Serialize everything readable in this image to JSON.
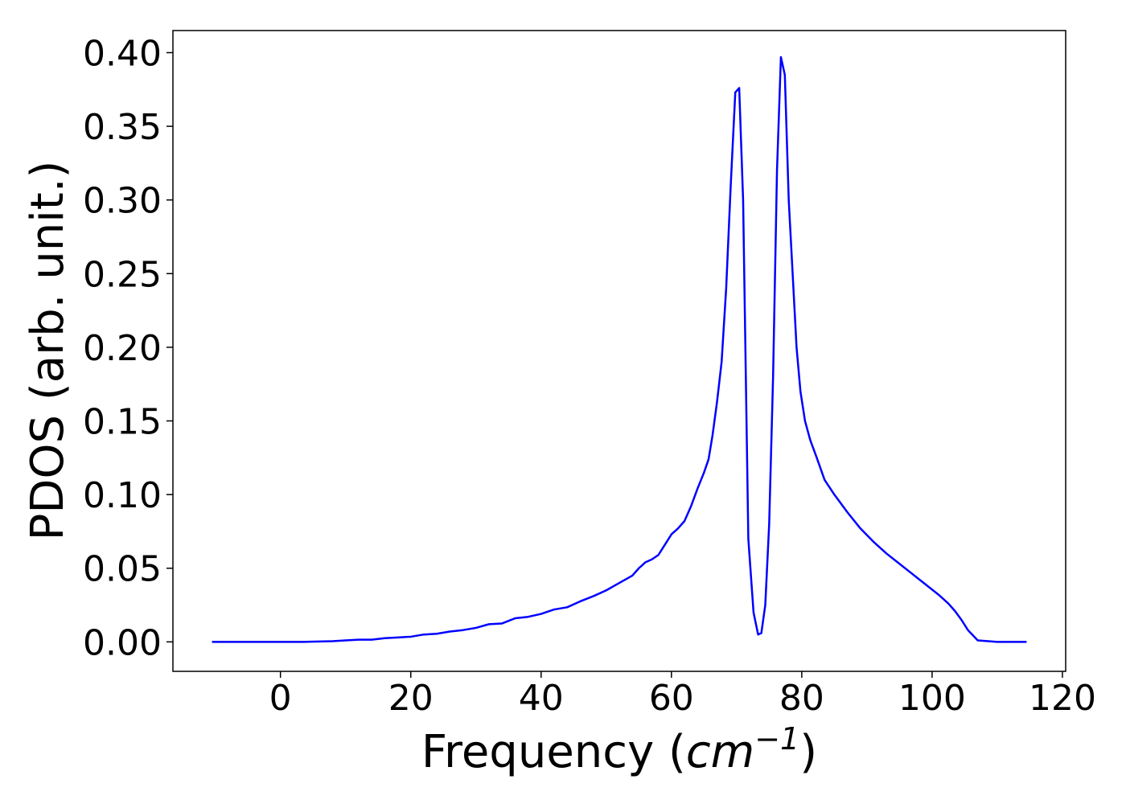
{
  "chart_data": {
    "type": "line",
    "title": "",
    "xlabel": "Frequency",
    "xlabel_unit": "cm",
    "xlabel_unit_exponent": "−1",
    "ylabel": "PDOS (arb. unit.)",
    "xlim": [
      -16.5,
      120.5
    ],
    "ylim": [
      -0.02,
      0.415
    ],
    "xticks": [
      0,
      20,
      40,
      60,
      80,
      100,
      120
    ],
    "xtick_labels": [
      "0",
      "20",
      "40",
      "60",
      "80",
      "100",
      "120"
    ],
    "yticks": [
      0.0,
      0.05,
      0.1,
      0.15,
      0.2,
      0.25,
      0.3,
      0.35,
      0.4
    ],
    "ytick_labels": [
      "0.00",
      "0.05",
      "0.10",
      "0.15",
      "0.20",
      "0.25",
      "0.30",
      "0.35",
      "0.40"
    ],
    "grid": false,
    "legend": "none",
    "series": [
      {
        "color": "#0000ff",
        "x": [
          -10.5,
          -5,
          0,
          3.5,
          8,
          10,
          12,
          14,
          16,
          18,
          20,
          22,
          24,
          26,
          28,
          30,
          32,
          34,
          36,
          38,
          40,
          42,
          44,
          46,
          48,
          50,
          52,
          54,
          55,
          56,
          57,
          58,
          59,
          60,
          61,
          62,
          63,
          64,
          65,
          65.7,
          66.3,
          67,
          67.7,
          68.4,
          69.1,
          69.8,
          70.4,
          71,
          71.8,
          72.6,
          73.3,
          73.8,
          74.4,
          75,
          75.6,
          76.2,
          76.8,
          77.4,
          78,
          78.6,
          79.2,
          79.8,
          80.5,
          81.3,
          82.3,
          83.5,
          85,
          87,
          89,
          91,
          93,
          95,
          97,
          99,
          101,
          102.5,
          103.5,
          104.5,
          105.5,
          107,
          110,
          114.5
        ],
        "y": [
          0.0,
          0.0,
          0.0,
          0.0,
          0.0005,
          0.001,
          0.0015,
          0.0015,
          0.0025,
          0.003,
          0.0035,
          0.005,
          0.0055,
          0.007,
          0.008,
          0.0095,
          0.012,
          0.0125,
          0.016,
          0.017,
          0.019,
          0.022,
          0.0235,
          0.0275,
          0.031,
          0.035,
          0.04,
          0.045,
          0.05,
          0.054,
          0.056,
          0.059,
          0.066,
          0.073,
          0.077,
          0.082,
          0.092,
          0.104,
          0.115,
          0.124,
          0.14,
          0.163,
          0.19,
          0.24,
          0.31,
          0.373,
          0.376,
          0.3,
          0.07,
          0.02,
          0.005,
          0.006,
          0.025,
          0.08,
          0.18,
          0.32,
          0.397,
          0.385,
          0.3,
          0.25,
          0.2,
          0.17,
          0.15,
          0.137,
          0.125,
          0.11,
          0.1,
          0.088,
          0.077,
          0.068,
          0.06,
          0.053,
          0.046,
          0.039,
          0.032,
          0.026,
          0.021,
          0.015,
          0.008,
          0.001,
          0.0,
          0.0
        ]
      }
    ]
  }
}
